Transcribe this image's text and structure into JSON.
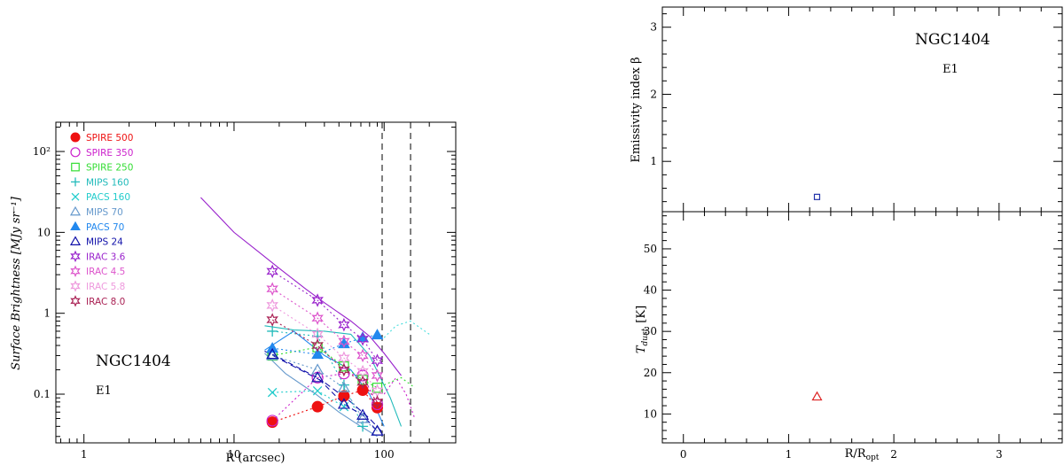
{
  "chart_data": [
    {
      "type": "line",
      "galaxy": "NGC1404",
      "morph_type": "E1",
      "xlabel": "R (arcsec)",
      "ylabel": "Surface Brightness [MJy sr⁻¹]",
      "xscale": "log",
      "yscale": "log",
      "xlim": [
        0.65,
        300
      ],
      "ylim": [
        0.025,
        230
      ],
      "x_tick_labels": [
        "1",
        "10",
        "100"
      ],
      "y_tick_labels": [
        "0.1",
        "1",
        "10",
        "10²"
      ],
      "vlines": [
        97,
        150
      ],
      "legend_position": "top-left",
      "series": [
        {
          "name": "SPIRE 500",
          "color": "#ee1111",
          "marker": "filled-circle",
          "link": "dotted",
          "x": [
            18,
            36,
            54,
            72,
            90
          ],
          "y": [
            0.045,
            0.07,
            0.095,
            0.112,
            0.068
          ]
        },
        {
          "name": "SPIRE 350",
          "color": "#cc22cc",
          "marker": "open-circle",
          "link": "dotted",
          "x": [
            18,
            36,
            54,
            72,
            90
          ],
          "y": [
            0.047,
            0.16,
            0.18,
            0.17,
            0.075
          ]
        },
        {
          "name": "SPIRE 250",
          "color": "#33dd33",
          "marker": "open-square",
          "link": "dotted",
          "x": [
            18,
            36,
            54,
            72,
            90
          ],
          "y": [
            0.3,
            0.38,
            0.22,
            0.15,
            0.12
          ]
        },
        {
          "name": "MIPS 160",
          "color": "#22bbbb",
          "marker": "plus",
          "link": "dotted",
          "x": [
            18,
            36,
            54,
            72
          ],
          "y": [
            0.6,
            0.52,
            0.13,
            0.04
          ]
        },
        {
          "name": "PACS 160",
          "color": "#22cccc",
          "marker": "cross",
          "link": "dotted",
          "x": [
            18,
            36,
            54
          ],
          "y": [
            0.105,
            0.11,
            0.07
          ]
        },
        {
          "name": "MIPS 70",
          "color": "#6699cc",
          "marker": "open-triangle",
          "link": "dotted",
          "x": [
            18,
            36,
            54,
            72,
            90
          ],
          "y": [
            0.3,
            0.2,
            0.12,
            0.05,
            0.035
          ]
        },
        {
          "name": "PACS 70",
          "color": "#2288ee",
          "marker": "filled-triangle",
          "link": "dotted",
          "x": [
            18,
            36,
            54,
            72,
            90
          ],
          "y": [
            0.37,
            0.31,
            0.42,
            0.5,
            0.54
          ]
        },
        {
          "name": "MIPS 24",
          "color": "#1111aa",
          "marker": "open-triangle",
          "link": "dashed",
          "x": [
            18,
            36,
            54,
            72,
            90
          ],
          "y": [
            0.31,
            0.16,
            0.075,
            0.055,
            0.035
          ]
        },
        {
          "name": "IRAC 3.6",
          "color": "#9922cc",
          "marker": "star",
          "link": "dotted",
          "x": [
            18,
            36,
            54,
            72,
            90
          ],
          "y": [
            3.3,
            1.45,
            0.72,
            0.48,
            0.26
          ]
        },
        {
          "name": "IRAC 4.5",
          "color": "#dd55cc",
          "marker": "star",
          "link": "dotted",
          "x": [
            18,
            36,
            54,
            72,
            90
          ],
          "y": [
            2.0,
            0.87,
            0.45,
            0.3,
            0.17
          ]
        },
        {
          "name": "IRAC 5.8",
          "color": "#ee99dd",
          "marker": "star",
          "link": "dotted",
          "x": [
            18,
            36,
            54,
            72,
            90
          ],
          "y": [
            1.25,
            0.55,
            0.28,
            0.19,
            0.11
          ]
        },
        {
          "name": "IRAC 8.0",
          "color": "#aa2255",
          "marker": "star",
          "link": "dotted",
          "x": [
            18,
            36,
            54,
            72,
            90
          ],
          "y": [
            0.83,
            0.4,
            0.2,
            0.14,
            0.08
          ]
        }
      ],
      "profiles": [
        {
          "color": "#9922cc",
          "style": "solid",
          "x": [
            6,
            10,
            15,
            20,
            30,
            40,
            60,
            80,
            100,
            130
          ],
          "y": [
            27,
            10,
            5.5,
            3.6,
            2.0,
            1.35,
            0.8,
            0.52,
            0.32,
            0.17
          ]
        },
        {
          "color": "#22bbbb",
          "style": "solid",
          "x": [
            16,
            25,
            40,
            60,
            80,
            110,
            130
          ],
          "y": [
            0.7,
            0.62,
            0.6,
            0.55,
            0.3,
            0.09,
            0.04
          ]
        },
        {
          "color": "#2288ee",
          "style": "solid",
          "x": [
            16,
            25,
            40,
            60,
            80,
            100
          ],
          "y": [
            0.35,
            0.6,
            0.3,
            0.2,
            0.1,
            0.04
          ]
        },
        {
          "color": "#1111aa",
          "style": "dashed",
          "x": [
            16,
            25,
            40,
            60,
            80,
            100
          ],
          "y": [
            0.34,
            0.22,
            0.14,
            0.08,
            0.05,
            0.032
          ]
        },
        {
          "color": "#6699cc",
          "style": "solid",
          "x": [
            16,
            22,
            35,
            50,
            70,
            90
          ],
          "y": [
            0.32,
            0.18,
            0.1,
            0.06,
            0.04,
            0.03
          ]
        },
        {
          "color": "#44dddd",
          "style": "dotted",
          "x": [
            100,
            120,
            150,
            200
          ],
          "y": [
            0.5,
            0.7,
            0.8,
            0.55
          ]
        },
        {
          "color": "#cc22cc",
          "style": "dotted",
          "x": [
            100,
            120,
            140,
            160
          ],
          "y": [
            0.1,
            0.16,
            0.1,
            0.05
          ]
        },
        {
          "color": "#33dd33",
          "style": "dotted",
          "x": [
            100,
            130,
            160
          ],
          "y": [
            0.13,
            0.16,
            0.12
          ]
        }
      ]
    },
    {
      "type": "scatter",
      "galaxy": "NGC1404",
      "morph_type": "E1",
      "ylabel": "Emissivity index β",
      "xlim": [
        -0.2,
        3.6
      ],
      "ylim": [
        0.25,
        3.3
      ],
      "y_tick_labels": [
        "1",
        "2",
        "3"
      ],
      "points": [
        {
          "x": 1.27,
          "y": 0.47,
          "marker": "open-square",
          "color": "#2233aa"
        }
      ]
    },
    {
      "type": "scatter",
      "xlabel": "R/R",
      "xlabel_sub": "opt",
      "ylabel": "T",
      "ylabel_sub": "dust",
      "ylabel_unit": "[K]",
      "xlim": [
        -0.2,
        3.6
      ],
      "ylim": [
        3,
        59
      ],
      "x_tick_labels": [
        "0",
        "1",
        "2",
        "3"
      ],
      "y_tick_labels": [
        "10",
        "20",
        "30",
        "40",
        "50"
      ],
      "points": [
        {
          "x": 1.27,
          "y": 14.2,
          "marker": "open-triangle",
          "color": "#dd2222"
        }
      ]
    }
  ]
}
